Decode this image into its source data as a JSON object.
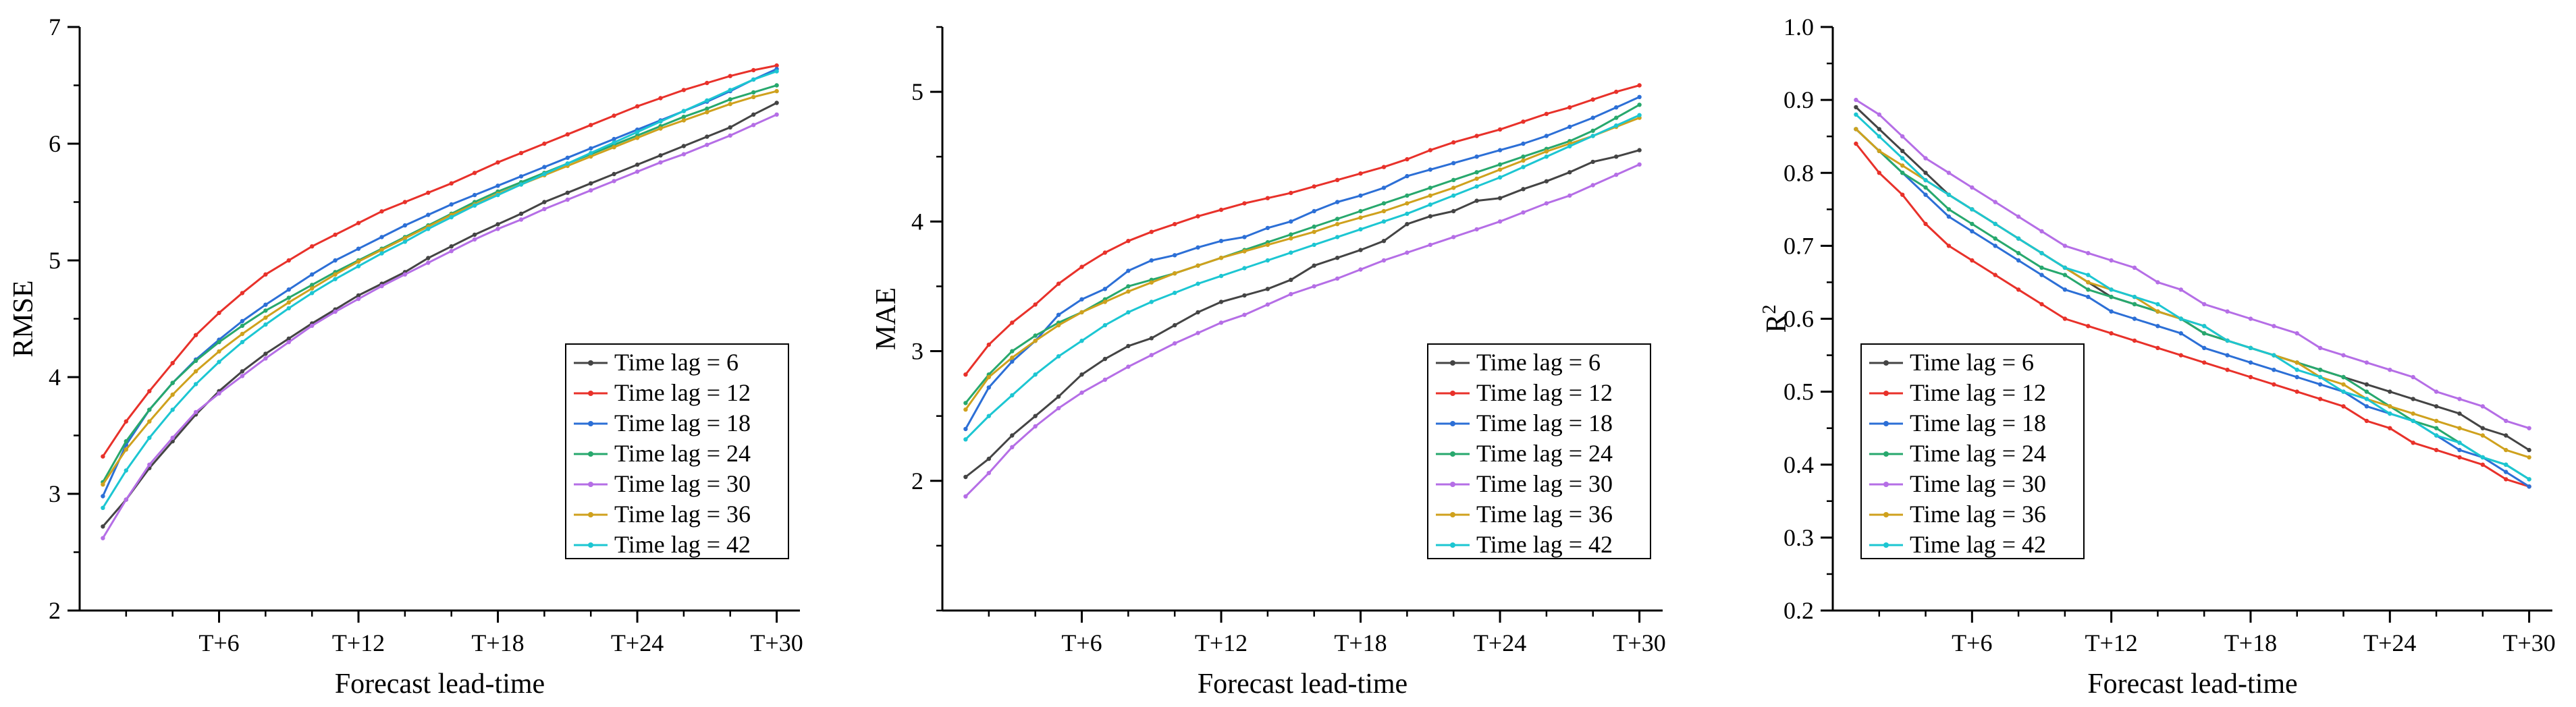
{
  "chart_data": [
    {
      "type": "line",
      "xlabel": "Forecast lead-time",
      "ylabel": "RMSE",
      "ylabel_sup": "",
      "ylim": [
        2,
        7
      ],
      "xlim": [
        0,
        31
      ],
      "yticks": [
        {
          "v": 2,
          "l": "2"
        },
        {
          "v": 3,
          "l": "3"
        },
        {
          "v": 4,
          "l": "4"
        },
        {
          "v": 5,
          "l": "5"
        },
        {
          "v": 6,
          "l": "6"
        },
        {
          "v": 7,
          "l": "7"
        }
      ],
      "ymajor_step": 1,
      "xtick_values": [
        6,
        12,
        18,
        24,
        30
      ],
      "xtick_labels": [
        "T+6",
        "T+12",
        "T+18",
        "T+24",
        "T+30"
      ],
      "legend_position": "bottom-right",
      "x": [
        1,
        2,
        3,
        4,
        5,
        6,
        7,
        8,
        9,
        10,
        11,
        12,
        13,
        14,
        15,
        16,
        17,
        18,
        19,
        20,
        21,
        22,
        23,
        24,
        25,
        26,
        27,
        28,
        29,
        30
      ],
      "series": [
        {
          "name": "Time lag = 6",
          "color": "#444444",
          "values": [
            2.72,
            2.95,
            3.22,
            3.45,
            3.68,
            3.88,
            4.05,
            4.2,
            4.33,
            4.46,
            4.58,
            4.7,
            4.8,
            4.9,
            5.02,
            5.12,
            5.22,
            5.31,
            5.4,
            5.5,
            5.58,
            5.66,
            5.74,
            5.82,
            5.9,
            5.98,
            6.06,
            6.14,
            6.25,
            6.35
          ]
        },
        {
          "name": "Time lag = 12",
          "color": "#e8312a",
          "values": [
            3.32,
            3.62,
            3.88,
            4.12,
            4.36,
            4.55,
            4.72,
            4.88,
            5.0,
            5.12,
            5.22,
            5.32,
            5.42,
            5.5,
            5.58,
            5.66,
            5.75,
            5.84,
            5.92,
            6.0,
            6.08,
            6.16,
            6.24,
            6.32,
            6.39,
            6.46,
            6.52,
            6.58,
            6.63,
            6.67
          ]
        },
        {
          "name": "Time lag = 18",
          "color": "#2c6fd6",
          "values": [
            2.98,
            3.42,
            3.72,
            3.95,
            4.15,
            4.32,
            4.48,
            4.62,
            4.75,
            4.88,
            5.0,
            5.1,
            5.2,
            5.3,
            5.39,
            5.48,
            5.56,
            5.64,
            5.72,
            5.8,
            5.88,
            5.96,
            6.04,
            6.12,
            6.2,
            6.28,
            6.36,
            6.45,
            6.55,
            6.64
          ]
        },
        {
          "name": "Time lag = 24",
          "color": "#27a86d",
          "values": [
            3.1,
            3.45,
            3.72,
            3.95,
            4.14,
            4.3,
            4.44,
            4.57,
            4.68,
            4.79,
            4.9,
            5.0,
            5.1,
            5.2,
            5.3,
            5.4,
            5.5,
            5.59,
            5.67,
            5.75,
            5.83,
            5.91,
            5.99,
            6.07,
            6.15,
            6.23,
            6.3,
            6.38,
            6.44,
            6.5
          ]
        },
        {
          "name": "Time lag = 30",
          "color": "#b56ee6",
          "values": [
            2.62,
            2.95,
            3.25,
            3.48,
            3.7,
            3.86,
            4.01,
            4.16,
            4.3,
            4.44,
            4.56,
            4.67,
            4.78,
            4.88,
            4.98,
            5.08,
            5.18,
            5.27,
            5.35,
            5.44,
            5.52,
            5.6,
            5.68,
            5.76,
            5.84,
            5.91,
            5.99,
            6.07,
            6.16,
            6.25
          ]
        },
        {
          "name": "Time lag = 36",
          "color": "#cfa11d",
          "values": [
            3.08,
            3.38,
            3.62,
            3.85,
            4.05,
            4.22,
            4.37,
            4.51,
            4.64,
            4.76,
            4.88,
            4.99,
            5.09,
            5.19,
            5.29,
            5.39,
            5.48,
            5.57,
            5.65,
            5.73,
            5.81,
            5.89,
            5.97,
            6.05,
            6.13,
            6.2,
            6.27,
            6.34,
            6.4,
            6.45
          ]
        },
        {
          "name": "Time lag = 42",
          "color": "#1cc6d2",
          "values": [
            2.88,
            3.2,
            3.48,
            3.72,
            3.94,
            4.13,
            4.3,
            4.45,
            4.59,
            4.72,
            4.84,
            4.95,
            5.06,
            5.16,
            5.27,
            5.37,
            5.47,
            5.56,
            5.65,
            5.74,
            5.83,
            5.92,
            6.01,
            6.1,
            6.19,
            6.28,
            6.37,
            6.46,
            6.55,
            6.62
          ]
        }
      ]
    },
    {
      "type": "line",
      "xlabel": "Forecast lead-time",
      "ylabel": "MAE",
      "ylabel_sup": "",
      "ylim": [
        1,
        5.5
      ],
      "xlim": [
        0,
        31
      ],
      "yticks": [
        {
          "v": 2,
          "l": "2"
        },
        {
          "v": 3,
          "l": "3"
        },
        {
          "v": 4,
          "l": "4"
        },
        {
          "v": 5,
          "l": "5"
        }
      ],
      "ymajor_step": 1,
      "xtick_values": [
        6,
        12,
        18,
        24,
        30
      ],
      "xtick_labels": [
        "T+6",
        "T+12",
        "T+18",
        "T+24",
        "T+30"
      ],
      "legend_position": "bottom-right",
      "x": [
        1,
        2,
        3,
        4,
        5,
        6,
        7,
        8,
        9,
        10,
        11,
        12,
        13,
        14,
        15,
        16,
        17,
        18,
        19,
        20,
        21,
        22,
        23,
        24,
        25,
        26,
        27,
        28,
        29,
        30
      ],
      "series": [
        {
          "name": "Time lag = 6",
          "color": "#444444",
          "values": [
            2.03,
            2.17,
            2.35,
            2.5,
            2.65,
            2.82,
            2.94,
            3.04,
            3.1,
            3.2,
            3.3,
            3.38,
            3.43,
            3.48,
            3.55,
            3.66,
            3.72,
            3.78,
            3.85,
            3.98,
            4.04,
            4.08,
            4.16,
            4.18,
            4.25,
            4.31,
            4.38,
            4.46,
            4.5,
            4.55
          ]
        },
        {
          "name": "Time lag = 12",
          "color": "#e8312a",
          "values": [
            2.82,
            3.05,
            3.22,
            3.36,
            3.52,
            3.65,
            3.76,
            3.85,
            3.92,
            3.98,
            4.04,
            4.09,
            4.14,
            4.18,
            4.22,
            4.27,
            4.32,
            4.37,
            4.42,
            4.48,
            4.55,
            4.61,
            4.66,
            4.71,
            4.77,
            4.83,
            4.88,
            4.94,
            5.0,
            5.05
          ]
        },
        {
          "name": "Time lag = 18",
          "color": "#2c6fd6",
          "values": [
            2.4,
            2.72,
            2.92,
            3.08,
            3.28,
            3.4,
            3.48,
            3.62,
            3.7,
            3.74,
            3.8,
            3.85,
            3.88,
            3.95,
            4.0,
            4.08,
            4.15,
            4.2,
            4.26,
            4.35,
            4.4,
            4.45,
            4.5,
            4.55,
            4.6,
            4.66,
            4.73,
            4.8,
            4.88,
            4.96
          ]
        },
        {
          "name": "Time lag = 24",
          "color": "#27a86d",
          "values": [
            2.6,
            2.82,
            3.0,
            3.12,
            3.22,
            3.3,
            3.4,
            3.5,
            3.55,
            3.6,
            3.66,
            3.72,
            3.78,
            3.84,
            3.9,
            3.96,
            4.02,
            4.08,
            4.14,
            4.2,
            4.26,
            4.32,
            4.38,
            4.44,
            4.5,
            4.56,
            4.62,
            4.7,
            4.8,
            4.9
          ]
        },
        {
          "name": "Time lag = 30",
          "color": "#b56ee6",
          "values": [
            1.88,
            2.06,
            2.26,
            2.42,
            2.56,
            2.68,
            2.78,
            2.88,
            2.97,
            3.06,
            3.14,
            3.22,
            3.28,
            3.36,
            3.44,
            3.5,
            3.56,
            3.63,
            3.7,
            3.76,
            3.82,
            3.88,
            3.94,
            4.0,
            4.07,
            4.14,
            4.2,
            4.28,
            4.36,
            4.44
          ]
        },
        {
          "name": "Time lag = 36",
          "color": "#cfa11d",
          "values": [
            2.55,
            2.8,
            2.95,
            3.08,
            3.2,
            3.3,
            3.38,
            3.46,
            3.53,
            3.6,
            3.66,
            3.72,
            3.77,
            3.82,
            3.87,
            3.92,
            3.98,
            4.03,
            4.08,
            4.14,
            4.2,
            4.26,
            4.33,
            4.4,
            4.47,
            4.54,
            4.6,
            4.66,
            4.73,
            4.8
          ]
        },
        {
          "name": "Time lag = 42",
          "color": "#1cc6d2",
          "values": [
            2.32,
            2.5,
            2.66,
            2.82,
            2.96,
            3.08,
            3.2,
            3.3,
            3.38,
            3.45,
            3.52,
            3.58,
            3.64,
            3.7,
            3.76,
            3.82,
            3.88,
            3.94,
            4.0,
            4.06,
            4.13,
            4.2,
            4.27,
            4.34,
            4.42,
            4.5,
            4.58,
            4.66,
            4.74,
            4.82
          ]
        }
      ]
    },
    {
      "type": "line",
      "xlabel": "Forecast lead-time",
      "ylabel": "R",
      "ylabel_sup": "2",
      "ylim": [
        0.2,
        1.0
      ],
      "xlim": [
        0,
        31
      ],
      "yticks": [
        {
          "v": 0.2,
          "l": "0.2"
        },
        {
          "v": 0.3,
          "l": "0.3"
        },
        {
          "v": 0.4,
          "l": "0.4"
        },
        {
          "v": 0.5,
          "l": "0.5"
        },
        {
          "v": 0.6,
          "l": "0.6"
        },
        {
          "v": 0.7,
          "l": "0.7"
        },
        {
          "v": 0.8,
          "l": "0.8"
        },
        {
          "v": 0.9,
          "l": "0.9"
        },
        {
          "v": 1.0,
          "l": "1.0"
        }
      ],
      "ymajor_step": 0.1,
      "xtick_values": [
        6,
        12,
        18,
        24,
        30
      ],
      "xtick_labels": [
        "T+6",
        "T+12",
        "T+18",
        "T+24",
        "T+30"
      ],
      "legend_position": "bottom-left",
      "x": [
        1,
        2,
        3,
        4,
        5,
        6,
        7,
        8,
        9,
        10,
        11,
        12,
        13,
        14,
        15,
        16,
        17,
        18,
        19,
        20,
        21,
        22,
        23,
        24,
        25,
        26,
        27,
        28,
        29,
        30
      ],
      "series": [
        {
          "name": "Time lag = 6",
          "color": "#444444",
          "values": [
            0.89,
            0.86,
            0.83,
            0.8,
            0.77,
            0.75,
            0.73,
            0.71,
            0.69,
            0.67,
            0.65,
            0.63,
            0.62,
            0.61,
            0.6,
            0.58,
            0.57,
            0.56,
            0.55,
            0.54,
            0.53,
            0.52,
            0.51,
            0.5,
            0.49,
            0.48,
            0.47,
            0.45,
            0.44,
            0.42
          ]
        },
        {
          "name": "Time lag = 12",
          "color": "#e8312a",
          "values": [
            0.84,
            0.8,
            0.77,
            0.73,
            0.7,
            0.68,
            0.66,
            0.64,
            0.62,
            0.6,
            0.59,
            0.58,
            0.57,
            0.56,
            0.55,
            0.54,
            0.53,
            0.52,
            0.51,
            0.5,
            0.49,
            0.48,
            0.46,
            0.45,
            0.43,
            0.42,
            0.41,
            0.4,
            0.38,
            0.37
          ]
        },
        {
          "name": "Time lag = 18",
          "color": "#2c6fd6",
          "values": [
            0.86,
            0.83,
            0.8,
            0.77,
            0.74,
            0.72,
            0.7,
            0.68,
            0.66,
            0.64,
            0.63,
            0.61,
            0.6,
            0.59,
            0.58,
            0.56,
            0.55,
            0.54,
            0.53,
            0.52,
            0.51,
            0.5,
            0.48,
            0.47,
            0.46,
            0.44,
            0.42,
            0.41,
            0.39,
            0.37
          ]
        },
        {
          "name": "Time lag = 24",
          "color": "#27a86d",
          "values": [
            0.86,
            0.83,
            0.8,
            0.78,
            0.75,
            0.73,
            0.71,
            0.69,
            0.67,
            0.66,
            0.64,
            0.63,
            0.62,
            0.61,
            0.6,
            0.58,
            0.57,
            0.56,
            0.55,
            0.54,
            0.53,
            0.52,
            0.5,
            0.48,
            0.46,
            0.45,
            0.43,
            0.41,
            0.4,
            0.38
          ]
        },
        {
          "name": "Time lag = 30",
          "color": "#b56ee6",
          "values": [
            0.9,
            0.88,
            0.85,
            0.82,
            0.8,
            0.78,
            0.76,
            0.74,
            0.72,
            0.7,
            0.69,
            0.68,
            0.67,
            0.65,
            0.64,
            0.62,
            0.61,
            0.6,
            0.59,
            0.58,
            0.56,
            0.55,
            0.54,
            0.53,
            0.52,
            0.5,
            0.49,
            0.48,
            0.46,
            0.45
          ]
        },
        {
          "name": "Time lag = 36",
          "color": "#cfa11d",
          "values": [
            0.86,
            0.83,
            0.81,
            0.79,
            0.77,
            0.75,
            0.73,
            0.71,
            0.69,
            0.67,
            0.65,
            0.64,
            0.63,
            0.61,
            0.6,
            0.59,
            0.57,
            0.56,
            0.55,
            0.54,
            0.52,
            0.51,
            0.49,
            0.48,
            0.47,
            0.46,
            0.45,
            0.44,
            0.42,
            0.41
          ]
        },
        {
          "name": "Time lag = 42",
          "color": "#1cc6d2",
          "values": [
            0.88,
            0.85,
            0.82,
            0.79,
            0.77,
            0.75,
            0.73,
            0.71,
            0.69,
            0.67,
            0.66,
            0.64,
            0.63,
            0.62,
            0.6,
            0.59,
            0.57,
            0.56,
            0.55,
            0.53,
            0.52,
            0.5,
            0.49,
            0.47,
            0.46,
            0.44,
            0.43,
            0.41,
            0.4,
            0.38
          ]
        }
      ]
    }
  ]
}
